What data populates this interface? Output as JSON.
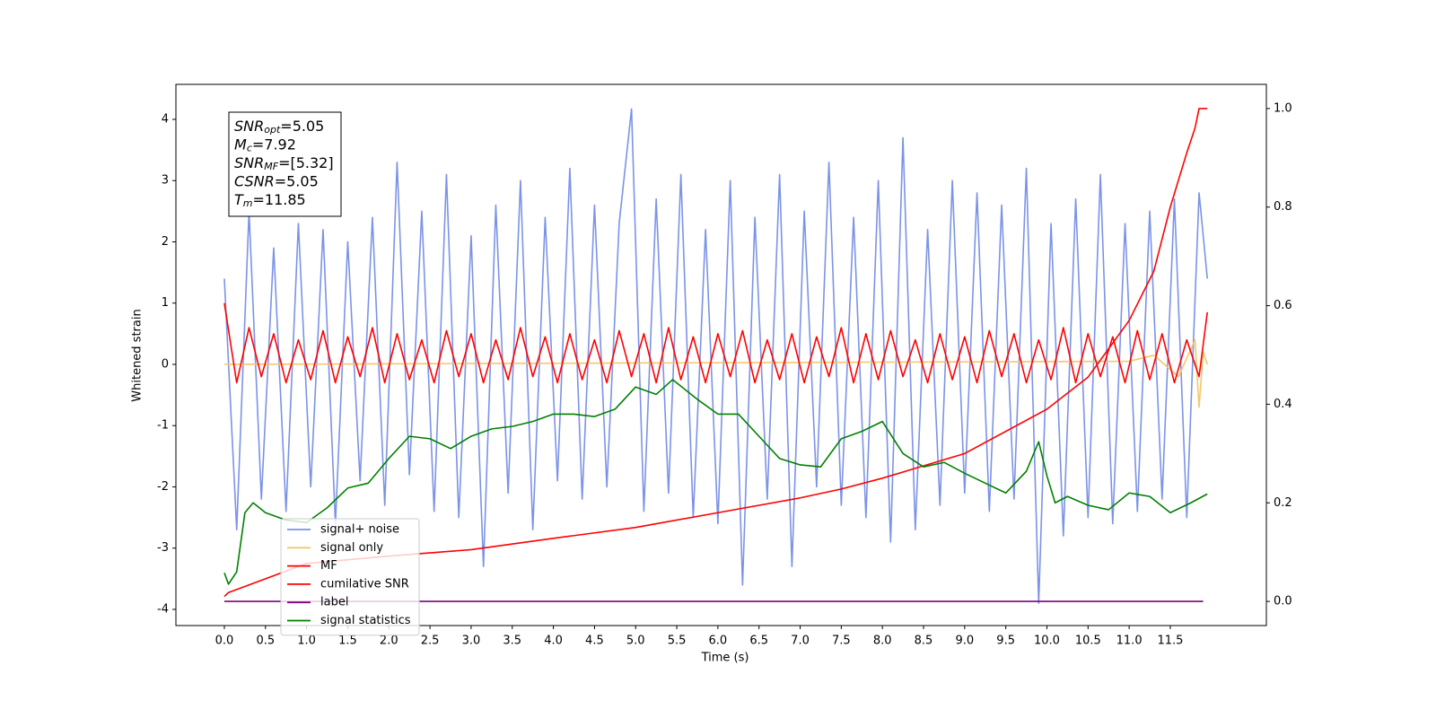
{
  "chart_data": {
    "type": "line",
    "xlabel": "Time (s)",
    "ylabel": "Whitened strain",
    "xlim": [
      -0.589,
      12.668
    ],
    "ylim": [
      -4.264,
      4.571
    ],
    "y2lim": [
      -0.049,
      1.049
    ],
    "xticks": [
      {
        "value": 0,
        "label": "0.0"
      },
      {
        "value": 0.5,
        "label": "0.5"
      },
      {
        "value": 1,
        "label": "1.0"
      },
      {
        "value": 1.5,
        "label": "1.5"
      },
      {
        "value": 2,
        "label": "2.0"
      },
      {
        "value": 2.5,
        "label": "2.5"
      },
      {
        "value": 3,
        "label": "3.0"
      },
      {
        "value": 3.5,
        "label": "3.5"
      },
      {
        "value": 4,
        "label": "4.0"
      },
      {
        "value": 4.5,
        "label": "4.5"
      },
      {
        "value": 5,
        "label": "5.0"
      },
      {
        "value": 5.5,
        "label": "5.5"
      },
      {
        "value": 6,
        "label": "6.0"
      },
      {
        "value": 6.5,
        "label": "6.5"
      },
      {
        "value": 7,
        "label": "7.0"
      },
      {
        "value": 7.5,
        "label": "7.5"
      },
      {
        "value": 8,
        "label": "8.0"
      },
      {
        "value": 8.5,
        "label": "8.5"
      },
      {
        "value": 9,
        "label": "9.0"
      },
      {
        "value": 9.5,
        "label": "9.5"
      },
      {
        "value": 10,
        "label": "10.0"
      },
      {
        "value": 10.5,
        "label": "10.5"
      },
      {
        "value": 11,
        "label": "11.0"
      },
      {
        "value": 11.5,
        "label": "11.5"
      }
    ],
    "yticks": [
      -4,
      -3,
      -2,
      -1,
      0,
      1,
      2,
      3,
      4
    ],
    "y2ticks": [
      {
        "value": 0,
        "label": "0.0"
      },
      {
        "value": 0.2,
        "label": "0.2"
      },
      {
        "value": 0.4,
        "label": "0.4"
      },
      {
        "value": 0.6,
        "label": "0.6"
      },
      {
        "value": 0.8,
        "label": "0.8"
      },
      {
        "value": 1,
        "label": "1.0"
      }
    ],
    "legend": "lower left",
    "annotations": [
      {
        "main": "SNR",
        "sub": "opt",
        "rest": "=5.05"
      },
      {
        "main": "M",
        "sub": "c",
        "rest": "=7.92"
      },
      {
        "main": "SNR",
        "sub": "MF",
        "rest": "=[5.32]"
      },
      {
        "main": "CSNR",
        "rest": "=5.05"
      },
      {
        "main": "T",
        "sub": "m",
        "rest": "=11.85"
      }
    ],
    "series": [
      {
        "name": "signal+ noise",
        "color": "#7b93e8",
        "x": [
          0,
          0.15,
          0.3,
          0.45,
          0.6,
          0.75,
          0.9,
          1.05,
          1.2,
          1.35,
          1.5,
          1.65,
          1.8,
          1.95,
          2.1,
          2.25,
          2.4,
          2.55,
          2.7,
          2.85,
          3,
          3.15,
          3.3,
          3.45,
          3.6,
          3.75,
          3.9,
          4.05,
          4.2,
          4.35,
          4.5,
          4.65,
          4.8,
          4.95,
          5.1,
          5.25,
          5.4,
          5.55,
          5.7,
          5.85,
          6,
          6.15,
          6.3,
          6.45,
          6.6,
          6.75,
          6.9,
          7.05,
          7.2,
          7.35,
          7.5,
          7.65,
          7.8,
          7.95,
          8.1,
          8.25,
          8.4,
          8.55,
          8.7,
          8.85,
          9,
          9.15,
          9.3,
          9.45,
          9.6,
          9.75,
          9.9,
          10.05,
          10.2,
          10.35,
          10.5,
          10.65,
          10.8,
          10.95,
          11.1,
          11.25,
          11.4,
          11.55,
          11.7,
          11.85,
          11.95
        ],
        "values": [
          1.4,
          -2.7,
          2.5,
          -2.2,
          1.9,
          -2.4,
          2.3,
          -2.0,
          2.2,
          -2.6,
          2.0,
          -1.9,
          2.4,
          -2.3,
          3.3,
          -1.8,
          2.5,
          -2.4,
          3.1,
          -2.5,
          2.1,
          -3.3,
          2.6,
          -2.1,
          3.0,
          -2.7,
          2.4,
          -1.9,
          3.2,
          -2.2,
          2.6,
          -2.0,
          2.3,
          4.17,
          -2.4,
          2.7,
          -2.1,
          3.1,
          -2.5,
          2.2,
          -2.6,
          3.0,
          -3.6,
          2.4,
          -2.2,
          3.1,
          -3.3,
          2.5,
          -2.0,
          3.3,
          -2.3,
          2.4,
          -2.5,
          3.0,
          -2.9,
          3.7,
          -2.7,
          2.2,
          -2.3,
          3.0,
          -2.1,
          2.8,
          -2.4,
          2.6,
          -2.2,
          3.2,
          -3.9,
          2.3,
          -2.8,
          2.7,
          -2.5,
          3.1,
          -2.6,
          2.3,
          -2.4,
          2.5,
          -2.2,
          2.7,
          -2.5,
          2.8,
          1.4
        ]
      },
      {
        "name": "signal only",
        "color": "#f5c76b",
        "x": [
          0,
          11.0,
          11.3,
          11.6,
          11.8,
          11.85,
          11.9,
          11.95
        ],
        "values": [
          0,
          0.05,
          0.15,
          -0.2,
          0.4,
          -0.7,
          0.2,
          0
        ]
      },
      {
        "name": "MF",
        "color": "#ff0000",
        "x": [
          0,
          0.15,
          0.3,
          0.45,
          0.6,
          0.75,
          0.9,
          1.05,
          1.2,
          1.35,
          1.5,
          1.65,
          1.8,
          1.95,
          2.1,
          2.25,
          2.4,
          2.55,
          2.7,
          2.85,
          3,
          3.15,
          3.3,
          3.45,
          3.6,
          3.75,
          3.9,
          4.05,
          4.2,
          4.35,
          4.5,
          4.65,
          4.8,
          4.95,
          5.1,
          5.25,
          5.4,
          5.55,
          5.7,
          5.85,
          6,
          6.15,
          6.3,
          6.45,
          6.6,
          6.75,
          6.9,
          7.05,
          7.2,
          7.35,
          7.5,
          7.65,
          7.8,
          7.95,
          8.1,
          8.25,
          8.4,
          8.55,
          8.7,
          8.85,
          9,
          9.15,
          9.3,
          9.45,
          9.6,
          9.75,
          9.9,
          10.05,
          10.2,
          10.35,
          10.5,
          10.65,
          10.8,
          10.95,
          11.1,
          11.25,
          11.4,
          11.55,
          11.7,
          11.85,
          11.95
        ],
        "values": [
          1.0,
          -0.3,
          0.6,
          -0.2,
          0.5,
          -0.3,
          0.4,
          -0.25,
          0.55,
          -0.3,
          0.45,
          -0.2,
          0.6,
          -0.3,
          0.5,
          -0.25,
          0.4,
          -0.3,
          0.55,
          -0.2,
          0.5,
          -0.3,
          0.4,
          -0.25,
          0.6,
          -0.2,
          0.45,
          -0.3,
          0.5,
          -0.25,
          0.4,
          -0.3,
          0.55,
          -0.2,
          0.5,
          -0.3,
          0.6,
          -0.25,
          0.45,
          -0.3,
          0.5,
          -0.2,
          0.55,
          -0.3,
          0.4,
          -0.25,
          0.5,
          -0.3,
          0.45,
          -0.2,
          0.6,
          -0.3,
          0.5,
          -0.25,
          0.55,
          -0.2,
          0.4,
          -0.3,
          0.5,
          -0.25,
          0.45,
          -0.3,
          0.55,
          -0.2,
          0.5,
          -0.3,
          0.4,
          -0.25,
          0.6,
          -0.3,
          0.5,
          -0.2,
          0.45,
          -0.3,
          0.55,
          -0.25,
          0.5,
          -0.3,
          0.4,
          -0.2,
          0.85
        ]
      },
      {
        "name": "cumilative SNR",
        "color": "#ff0000",
        "axis": "y2",
        "x": [
          0,
          0.05,
          1,
          2,
          3,
          4,
          5,
          6,
          7,
          7.5,
          8,
          9,
          10,
          10.5,
          11,
          11.3,
          11.5,
          11.7,
          11.8,
          11.85,
          11.95
        ],
        "values": [
          0.01,
          0.018,
          0.077,
          0.092,
          0.105,
          0.128,
          0.15,
          0.18,
          0.21,
          0.228,
          0.25,
          0.3,
          0.39,
          0.455,
          0.57,
          0.67,
          0.8,
          0.91,
          0.96,
          1.0,
          1.0
        ]
      },
      {
        "name": "label",
        "color": "#800080",
        "axis": "y2",
        "x": [
          0,
          11.9
        ],
        "values": [
          0,
          0
        ]
      },
      {
        "name": "signal statistics",
        "color": "#008000",
        "axis": "y2",
        "x": [
          0,
          0.05,
          0.15,
          0.25,
          0.35,
          0.5,
          0.75,
          1,
          1.25,
          1.5,
          1.75,
          2,
          2.25,
          2.5,
          2.75,
          3,
          3.25,
          3.5,
          3.75,
          4,
          4.25,
          4.5,
          4.75,
          5,
          5.25,
          5.45,
          5.75,
          6,
          6.25,
          6.5,
          6.75,
          7,
          7.25,
          7.5,
          7.75,
          8,
          8.25,
          8.5,
          8.75,
          9,
          9.25,
          9.5,
          9.75,
          9.9,
          10,
          10.1,
          10.25,
          10.5,
          10.75,
          11,
          11.25,
          11.5,
          11.75,
          11.95
        ],
        "values": [
          0.058,
          0.035,
          0.06,
          0.18,
          0.2,
          0.18,
          0.165,
          0.16,
          0.19,
          0.23,
          0.24,
          0.29,
          0.335,
          0.33,
          0.31,
          0.335,
          0.35,
          0.355,
          0.365,
          0.38,
          0.38,
          0.375,
          0.39,
          0.435,
          0.42,
          0.45,
          0.41,
          0.38,
          0.38,
          0.335,
          0.29,
          0.277,
          0.273,
          0.33,
          0.345,
          0.365,
          0.3,
          0.273,
          0.282,
          0.26,
          0.24,
          0.22,
          0.264,
          0.324,
          0.255,
          0.2,
          0.213,
          0.195,
          0.186,
          0.22,
          0.213,
          0.18,
          0.2,
          0.218
        ]
      }
    ]
  }
}
